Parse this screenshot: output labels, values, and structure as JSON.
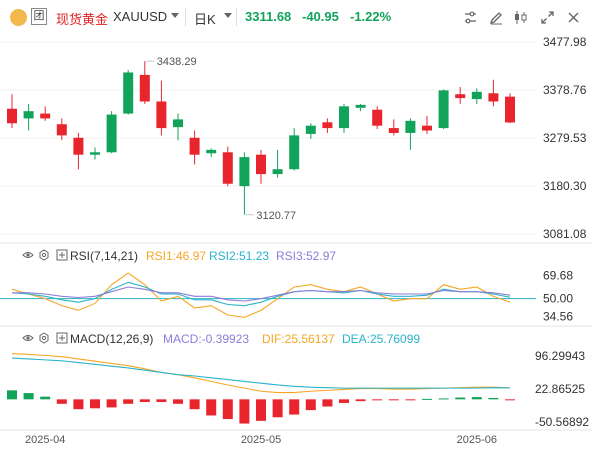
{
  "header": {
    "symbol_name": "现货黄金",
    "symbol_code": "XAUUSD",
    "period": "日K",
    "price": "3311.68",
    "change": "-40.95",
    "change_pct": "-1.22%",
    "tool_label": "团"
  },
  "colors": {
    "up": "#12a35b",
    "down": "#e8242c",
    "price_axis": "#333333",
    "ma": "#2ab3c9"
  },
  "chart_data": [
    {
      "type": "candlestick",
      "x_axis_labels": [
        "2025-04",
        "2025-05",
        "2025-06"
      ],
      "y_ticks": [
        "3477.98",
        "3378.76",
        "3279.53",
        "3180.30",
        "3081.08"
      ],
      "ylim": [
        3081.08,
        3477.98
      ],
      "annotations": {
        "high": "3438.29",
        "low": "3120.77"
      },
      "candles": [
        {
          "o": 3340,
          "h": 3370,
          "l": 3300,
          "c": 3310
        },
        {
          "o": 3320,
          "h": 3350,
          "l": 3295,
          "c": 3335
        },
        {
          "o": 3330,
          "h": 3345,
          "l": 3315,
          "c": 3320
        },
        {
          "o": 3308,
          "h": 3320,
          "l": 3275,
          "c": 3285
        },
        {
          "o": 3280,
          "h": 3290,
          "l": 3215,
          "c": 3245
        },
        {
          "o": 3245,
          "h": 3260,
          "l": 3235,
          "c": 3250
        },
        {
          "o": 3250,
          "h": 3335,
          "l": 3248,
          "c": 3328
        },
        {
          "o": 3330,
          "h": 3420,
          "l": 3328,
          "c": 3415
        },
        {
          "o": 3410,
          "h": 3438.29,
          "l": 3350,
          "c": 3355
        },
        {
          "o": 3355,
          "h": 3398,
          "l": 3285,
          "c": 3300
        },
        {
          "o": 3302,
          "h": 3330,
          "l": 3275,
          "c": 3318
        },
        {
          "o": 3280,
          "h": 3295,
          "l": 3225,
          "c": 3245
        },
        {
          "o": 3248,
          "h": 3258,
          "l": 3240,
          "c": 3255
        },
        {
          "o": 3250,
          "h": 3262,
          "l": 3180,
          "c": 3185
        },
        {
          "o": 3180,
          "h": 3250,
          "l": 3120.77,
          "c": 3240
        },
        {
          "o": 3245,
          "h": 3255,
          "l": 3185,
          "c": 3205
        },
        {
          "o": 3205,
          "h": 3255,
          "l": 3198,
          "c": 3215
        },
        {
          "o": 3215,
          "h": 3300,
          "l": 3212,
          "c": 3285
        },
        {
          "o": 3288,
          "h": 3310,
          "l": 3278,
          "c": 3305
        },
        {
          "o": 3312,
          "h": 3320,
          "l": 3290,
          "c": 3300
        },
        {
          "o": 3300,
          "h": 3350,
          "l": 3290,
          "c": 3345
        },
        {
          "o": 3342,
          "h": 3350,
          "l": 3335,
          "c": 3348
        },
        {
          "o": 3338,
          "h": 3345,
          "l": 3298,
          "c": 3305
        },
        {
          "o": 3300,
          "h": 3318,
          "l": 3285,
          "c": 3290
        },
        {
          "o": 3290,
          "h": 3320,
          "l": 3255,
          "c": 3315
        },
        {
          "o": 3305,
          "h": 3325,
          "l": 3288,
          "c": 3295
        },
        {
          "o": 3300,
          "h": 3380,
          "l": 3298,
          "c": 3378
        },
        {
          "o": 3370,
          "h": 3385,
          "l": 3350,
          "c": 3362
        },
        {
          "o": 3360,
          "h": 3382,
          "l": 3350,
          "c": 3375
        },
        {
          "o": 3372,
          "h": 3400,
          "l": 3345,
          "c": 3355
        },
        {
          "o": 3365,
          "h": 3372,
          "l": 3310,
          "c": 3311.68
        }
      ]
    },
    {
      "type": "line",
      "indicator": "RSI(7,14,21)",
      "y_ticks": [
        "69.68",
        "50.00",
        "34.56"
      ],
      "ylim": [
        30,
        78
      ],
      "reference_line": 50,
      "series": [
        {
          "name": "RSI1:46.97",
          "color": "#f5a623",
          "values": [
            58,
            54,
            50,
            44,
            40,
            46,
            62,
            72,
            62,
            48,
            52,
            42,
            44,
            36,
            34,
            40,
            50,
            60,
            62,
            58,
            56,
            60,
            54,
            48,
            50,
            50,
            62,
            58,
            60,
            52,
            46.97
          ]
        },
        {
          "name": "RSI2:51.23",
          "color": "#2ab3c9",
          "values": [
            55,
            54,
            52,
            49,
            47,
            50,
            58,
            64,
            60,
            54,
            54,
            49,
            49,
            45,
            44,
            47,
            52,
            56,
            57,
            56,
            55,
            57,
            54,
            52,
            52,
            53,
            58,
            56,
            56,
            54,
            51.23
          ]
        },
        {
          "name": "RSI3:52.97",
          "color": "#8a7ed8",
          "values": [
            55,
            55,
            54,
            52,
            51,
            52,
            56,
            60,
            58,
            55,
            55,
            52,
            52,
            49,
            48,
            50,
            53,
            56,
            57,
            56,
            56,
            57,
            55,
            54,
            54,
            54,
            57,
            56,
            56,
            55,
            52.97
          ]
        }
      ]
    },
    {
      "type": "bar",
      "indicator": "MACD(12,26,9)",
      "y_ticks": [
        "96.29943",
        "22.86525",
        "-50.56892"
      ],
      "ylim": [
        -55,
        110
      ],
      "series": [
        {
          "name": "MACD:-0.39923",
          "color": "#e8242c",
          "values": [
            20,
            14,
            6,
            -10,
            -22,
            -20,
            -18,
            -10,
            -6,
            -6,
            -10,
            -22,
            -36,
            -44,
            -54,
            -48,
            -40,
            -34,
            -24,
            -16,
            -8,
            -4,
            -2,
            -1,
            -1,
            1,
            2,
            4,
            5,
            3,
            -0.39923
          ]
        },
        {
          "name": "DIF:25.56137",
          "color": "#f5a623",
          "values": [
            102,
            100,
            98,
            95,
            90,
            85,
            80,
            75,
            68,
            60,
            55,
            48,
            40,
            32,
            25,
            18,
            15,
            15,
            18,
            20,
            22,
            24,
            24,
            23,
            23,
            24,
            25,
            26,
            27,
            27,
            25.56137
          ]
        },
        {
          "name": "DEA:25.76099",
          "color": "#2ab3c9",
          "values": [
            92,
            90,
            88,
            86,
            82,
            78,
            74,
            70,
            65,
            60,
            55,
            52,
            48,
            44,
            40,
            36,
            32,
            29,
            27,
            26,
            25,
            25,
            25,
            25,
            25,
            25,
            25,
            25,
            25,
            26,
            25.76099
          ]
        }
      ]
    }
  ]
}
